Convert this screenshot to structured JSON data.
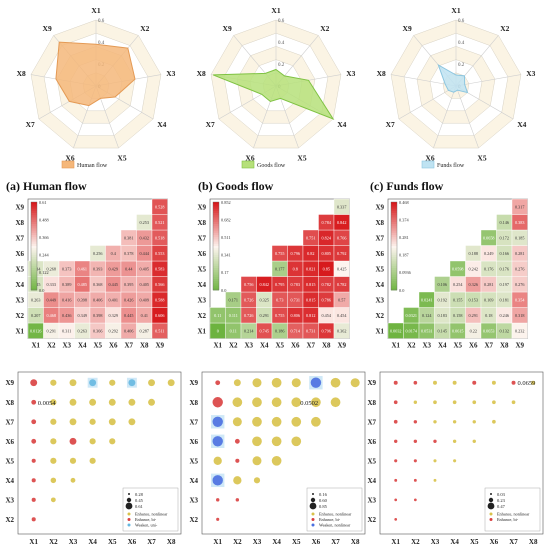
{
  "chart_data": [
    {
      "type": "radar",
      "subtitle": "(a) Human flow",
      "legend_label": "Human flow",
      "color": "#f5b77a",
      "edge_color": "#e49a55",
      "axes": [
        "X1",
        "X2",
        "X3",
        "X4",
        "X5",
        "X6",
        "X7",
        "X8",
        "X9"
      ],
      "ticks": [
        "0",
        "0.2",
        "0.4",
        "0.6"
      ],
      "rmax": 0.6,
      "values": [
        0.38,
        0.45,
        0.36,
        0.2,
        0.12,
        0.19,
        0.28,
        0.37,
        0.52
      ]
    },
    {
      "type": "radar",
      "subtitle": "(b) Goods flow",
      "legend_label": "Goods flow",
      "color": "#b6e07a",
      "edge_color": "#7fc242",
      "axes": [
        "X1",
        "X2",
        "X3",
        "X4",
        "X5",
        "X6",
        "X7",
        "X8",
        "X9"
      ],
      "ticks": [
        "0",
        "0.2",
        "0.4",
        "0.6"
      ],
      "rmax": 0.6,
      "values": [
        0.15,
        0.12,
        0.3,
        0.6,
        0.12,
        0.15,
        0.15,
        0.58,
        0.15
      ]
    },
    {
      "type": "radar",
      "subtitle": "(c) Funds flow",
      "legend_label": "Funds flow",
      "color": "#bfe3f2",
      "edge_color": "#8cc6e0",
      "axes": [
        "X1",
        "X2",
        "X3",
        "X4",
        "X5",
        "X6",
        "X7",
        "X8",
        "X9"
      ],
      "ticks": [
        "0",
        "0.2",
        "0.4",
        "0.6"
      ],
      "rmax": 0.6,
      "values": [
        0.1,
        0.12,
        0.08,
        0.12,
        0.04,
        0.06,
        0.08,
        0.1,
        0.25
      ]
    },
    {
      "type": "heatmap",
      "labels": [
        "X1",
        "X2",
        "X3",
        "X4",
        "X5",
        "X6",
        "X7",
        "X8",
        "X9"
      ],
      "colorbar_ticks": [
        "0.61",
        "0.488",
        "0.366",
        "0.244",
        "0.122",
        "0.0"
      ],
      "vmin": 0,
      "vmax": 0.61,
      "low_color": "#6db33f",
      "mid_color": "#fdf4ef",
      "high_color": "#d7191c",
      "rows": {
        "X1": [
          0.0126,
          0.291,
          0.311,
          0.263,
          0.366,
          0.292,
          0.406,
          0.287,
          0.511
        ],
        "X2": [
          0.207,
          0.468,
          0.436,
          0.349,
          0.398,
          0.329,
          0.445,
          0.41,
          0.606
        ],
        "X3": [
          0.263,
          0.449,
          0.416,
          0.398,
          0.406,
          0.401,
          0.426,
          0.409,
          0.588
        ],
        "X4": [
          0.225,
          0.333,
          0.389,
          0.485,
          0.368,
          0.445,
          0.395,
          0.405,
          0.566
        ],
        "X5": [
          0.234,
          0.268,
          0.373,
          0.461,
          0.393,
          0.429,
          0.44,
          0.405,
          0.583
        ],
        "X6": [
          0.256,
          0.4,
          0.378,
          0.444,
          0.553
        ],
        "X7": [
          0.381,
          0.432,
          0.518
        ],
        "X8": [
          0.253,
          0.521
        ],
        "X9": [
          0.528
        ]
      }
    },
    {
      "type": "heatmap",
      "labels": [
        "X1",
        "X2",
        "X3",
        "X4",
        "X5",
        "X6",
        "X7",
        "X8",
        "X9"
      ],
      "colorbar_ticks": [
        "0.852",
        "0.682",
        "0.511",
        "0.341",
        "0.17",
        "0.0"
      ],
      "vmin": 0,
      "vmax": 0.852,
      "low_color": "#6db33f",
      "mid_color": "#fdf4ef",
      "high_color": "#d7191c",
      "rows": {
        "X1": [
          0,
          0.11,
          0.214,
          0.745,
          0.186,
          0.714,
          0.731,
          0.796,
          0.362
        ],
        "X2": [
          0.11,
          0.111,
          0.726,
          0.291,
          0.755,
          0.806,
          0.812,
          0.454,
          0.454
        ],
        "X3": [
          0.171,
          0.726,
          0.325,
          0.73,
          0.731,
          0.815,
          0.786,
          0.57
        ],
        "X4": [
          0.756,
          0.842,
          0.795,
          0.783,
          0.815,
          0.782,
          0.782
        ],
        "X5": [
          0.177,
          0.8,
          0.821,
          0.85,
          0.425
        ],
        "X6": [
          0.755,
          0.796,
          0.82,
          0.805,
          0.792
        ],
        "X7": [
          0.751,
          0.824,
          0.766
        ],
        "X8": [
          0.784,
          0.842
        ],
        "X9": [
          0.337
        ]
      }
    },
    {
      "type": "heatmap",
      "labels": [
        "X1",
        "X2",
        "X3",
        "X4",
        "X5",
        "X6",
        "X7",
        "X8",
        "X9"
      ],
      "colorbar_ticks": [
        "0.468",
        "0.374",
        "0.281",
        "0.187",
        "0.0936",
        "0.0"
      ],
      "vmin": 0,
      "vmax": 0.468,
      "low_color": "#6db33f",
      "mid_color": "#fdf4ef",
      "high_color": "#d7191c",
      "rows": {
        "X1": [
          0.0032,
          0.0174,
          0.0531,
          0.145,
          0.0615,
          0.22,
          0.0653,
          0.132,
          0.232
        ],
        "X2": [
          0.0321,
          0.124,
          0.183,
          0.158,
          0.291,
          0.18,
          0.246,
          0.318
        ],
        "X3": [
          0.0241,
          0.192,
          0.155,
          0.153,
          0.169,
          0.181,
          0.354
        ],
        "X4": [
          0.106,
          0.254,
          0.326,
          0.281,
          0.197,
          0.276
        ],
        "X5": [
          0.0598,
          0.242,
          0.176,
          0.176,
          0.276
        ],
        "X6": [
          0.188,
          0.249,
          0.166,
          0.281
        ],
        "X7": [
          0.0658,
          0.172,
          0.185
        ],
        "X8": [
          0.146,
          0.383
        ],
        "X9": [
          0.317
        ]
      }
    },
    {
      "type": "bubble",
      "xlabels": [
        "X1",
        "X2",
        "X3",
        "X4",
        "X5",
        "X6",
        "X7",
        "X8"
      ],
      "ylabels": [
        "X2",
        "X3",
        "X4",
        "X5",
        "X6",
        "X7",
        "X8",
        "X9"
      ],
      "annotation": "0.0054",
      "annotation_cell": [
        1,
        8
      ],
      "legend": {
        "sizes": [
          "0.28",
          "0.45",
          "0.61"
        ],
        "entries": [
          "Enhance, nonlinear",
          "Enhance, bi-",
          "Weaken, uni-"
        ],
        "colors": [
          "#d8c24a",
          "#d94040",
          "#66b8e0"
        ]
      },
      "points": [
        [
          1,
          2,
          0.15,
          "r"
        ],
        [
          1,
          3,
          0.15,
          "r"
        ],
        [
          2,
          3,
          0.2,
          "y"
        ],
        [
          1,
          4,
          0.15,
          "r"
        ],
        [
          2,
          4,
          0.25,
          "y"
        ],
        [
          3,
          4,
          0.2,
          "y"
        ],
        [
          1,
          5,
          0.15,
          "r"
        ],
        [
          2,
          5,
          0.3,
          "y"
        ],
        [
          3,
          5,
          0.3,
          "y"
        ],
        [
          4,
          5,
          0.3,
          "y"
        ],
        [
          1,
          6,
          0.2,
          "r"
        ],
        [
          2,
          6,
          0.3,
          "y"
        ],
        [
          3,
          6,
          0.35,
          "r"
        ],
        [
          4,
          6,
          0.3,
          "y"
        ],
        [
          5,
          6,
          0.3,
          "y"
        ],
        [
          1,
          7,
          0.2,
          "r"
        ],
        [
          2,
          7,
          0.3,
          "y"
        ],
        [
          3,
          7,
          0.35,
          "y"
        ],
        [
          4,
          7,
          0.3,
          "y"
        ],
        [
          5,
          7,
          0.35,
          "y"
        ],
        [
          6,
          7,
          0.35,
          "y"
        ],
        [
          1,
          8,
          0.2,
          "r"
        ],
        [
          2,
          8,
          0.3,
          "y"
        ],
        [
          3,
          8,
          0.35,
          "y"
        ],
        [
          4,
          8,
          0.35,
          "y"
        ],
        [
          5,
          8,
          0.35,
          "y"
        ],
        [
          6,
          8,
          0.35,
          "y"
        ],
        [
          7,
          8,
          0.35,
          "y"
        ],
        [
          1,
          9,
          0.35,
          "r"
        ],
        [
          2,
          9,
          0.3,
          "y"
        ],
        [
          3,
          9,
          0.35,
          "y"
        ],
        [
          4,
          9,
          0.35,
          "b"
        ],
        [
          5,
          9,
          0.3,
          "y"
        ],
        [
          6,
          9,
          0.35,
          "b"
        ],
        [
          7,
          9,
          0.35,
          "y"
        ],
        [
          8,
          9,
          0.35,
          "y"
        ]
      ]
    },
    {
      "type": "bubble",
      "xlabels": [
        "X1",
        "X2",
        "X3",
        "X4",
        "X5",
        "X6",
        "X7",
        "X8"
      ],
      "ylabels": [
        "X2",
        "X3",
        "X4",
        "X5",
        "X6",
        "X7",
        "X8",
        "X9"
      ],
      "annotation": "0.0502",
      "annotation_cell": [
        5,
        8
      ],
      "legend": {
        "sizes": [
          "0.16",
          "0.60",
          "0.85"
        ],
        "entries": [
          "Enhance, nonlinear",
          "Enhance, bi-",
          "Weaken, nonlinear"
        ],
        "colors": [
          "#d8c24a",
          "#d94040",
          "#4a6fe0"
        ]
      },
      "points": [
        [
          1,
          2,
          0.08,
          "r"
        ],
        [
          1,
          3,
          0.1,
          "r"
        ],
        [
          2,
          3,
          0.1,
          "r"
        ],
        [
          1,
          4,
          0.6,
          "b"
        ],
        [
          2,
          4,
          0.45,
          "y"
        ],
        [
          3,
          4,
          0.3,
          "y"
        ],
        [
          1,
          5,
          0.45,
          "y"
        ],
        [
          2,
          5,
          0.15,
          "r"
        ],
        [
          3,
          5,
          0.5,
          "y"
        ],
        [
          4,
          5,
          0.55,
          "y"
        ],
        [
          1,
          6,
          0.6,
          "b"
        ],
        [
          2,
          6,
          0.2,
          "r"
        ],
        [
          3,
          6,
          0.55,
          "y"
        ],
        [
          4,
          6,
          0.55,
          "y"
        ],
        [
          5,
          6,
          0.55,
          "y"
        ],
        [
          1,
          7,
          0.6,
          "b"
        ],
        [
          2,
          7,
          0.5,
          "y"
        ],
        [
          3,
          7,
          0.55,
          "y"
        ],
        [
          4,
          7,
          0.55,
          "y"
        ],
        [
          5,
          7,
          0.55,
          "y"
        ],
        [
          6,
          7,
          0.55,
          "y"
        ],
        [
          1,
          8,
          0.6,
          "r"
        ],
        [
          2,
          8,
          0.55,
          "y"
        ],
        [
          3,
          8,
          0.55,
          "y"
        ],
        [
          4,
          8,
          0.55,
          "y"
        ],
        [
          5,
          8,
          0.55,
          "y"
        ],
        [
          6,
          8,
          0.55,
          "y"
        ],
        [
          7,
          8,
          0.55,
          "y"
        ],
        [
          1,
          9,
          0.2,
          "r"
        ],
        [
          2,
          9,
          0.35,
          "y"
        ],
        [
          3,
          9,
          0.5,
          "y"
        ],
        [
          4,
          9,
          0.55,
          "y"
        ],
        [
          5,
          9,
          0.5,
          "y"
        ],
        [
          6,
          9,
          0.6,
          "b"
        ],
        [
          7,
          9,
          0.55,
          "y"
        ],
        [
          8,
          9,
          0.5,
          "y"
        ]
      ]
    },
    {
      "type": "bubble",
      "xlabels": [
        "X1",
        "X2",
        "X3",
        "X4",
        "X5",
        "X6",
        "X7",
        "X8"
      ],
      "ylabels": [
        "X2",
        "X3",
        "X4",
        "X5",
        "X6",
        "X7",
        "X8",
        "X9"
      ],
      "annotation": "0.0659",
      "annotation_cell": [
        7,
        9
      ],
      "legend": {
        "sizes": [
          "0.03",
          "0.23",
          "0.47"
        ],
        "entries": [
          "Enhance, nonlinear",
          "Enhance, bi-"
        ],
        "colors": [
          "#d8c24a",
          "#d94040"
        ]
      },
      "points": [
        [
          1,
          2,
          0.05,
          "r"
        ],
        [
          1,
          3,
          0.05,
          "r"
        ],
        [
          2,
          3,
          0.05,
          "r"
        ],
        [
          1,
          4,
          0.06,
          "r"
        ],
        [
          2,
          4,
          0.06,
          "r"
        ],
        [
          3,
          4,
          0.06,
          "y"
        ],
        [
          1,
          5,
          0.08,
          "r"
        ],
        [
          2,
          5,
          0.08,
          "r"
        ],
        [
          3,
          5,
          0.08,
          "y"
        ],
        [
          4,
          5,
          0.08,
          "y"
        ],
        [
          1,
          6,
          0.1,
          "r"
        ],
        [
          2,
          6,
          0.1,
          "r"
        ],
        [
          3,
          6,
          0.1,
          "r"
        ],
        [
          4,
          6,
          0.1,
          "y"
        ],
        [
          5,
          6,
          0.1,
          "y"
        ],
        [
          1,
          7,
          0.12,
          "r"
        ],
        [
          2,
          7,
          0.1,
          "r"
        ],
        [
          3,
          7,
          0.1,
          "y"
        ],
        [
          4,
          7,
          0.1,
          "y"
        ],
        [
          5,
          7,
          0.1,
          "y"
        ],
        [
          6,
          7,
          0.12,
          "y"
        ],
        [
          1,
          8,
          0.12,
          "r"
        ],
        [
          2,
          8,
          0.1,
          "y"
        ],
        [
          3,
          8,
          0.12,
          "y"
        ],
        [
          4,
          8,
          0.12,
          "y"
        ],
        [
          5,
          8,
          0.12,
          "y"
        ],
        [
          6,
          8,
          0.12,
          "y"
        ],
        [
          7,
          8,
          0.12,
          "y"
        ],
        [
          1,
          9,
          0.14,
          "r"
        ],
        [
          2,
          9,
          0.12,
          "r"
        ],
        [
          3,
          9,
          0.14,
          "y"
        ],
        [
          4,
          9,
          0.14,
          "y"
        ],
        [
          5,
          9,
          0.14,
          "r"
        ],
        [
          6,
          9,
          0.14,
          "y"
        ],
        [
          7,
          9,
          0.14,
          "r"
        ],
        [
          8,
          9,
          0.14,
          "y"
        ]
      ]
    }
  ]
}
